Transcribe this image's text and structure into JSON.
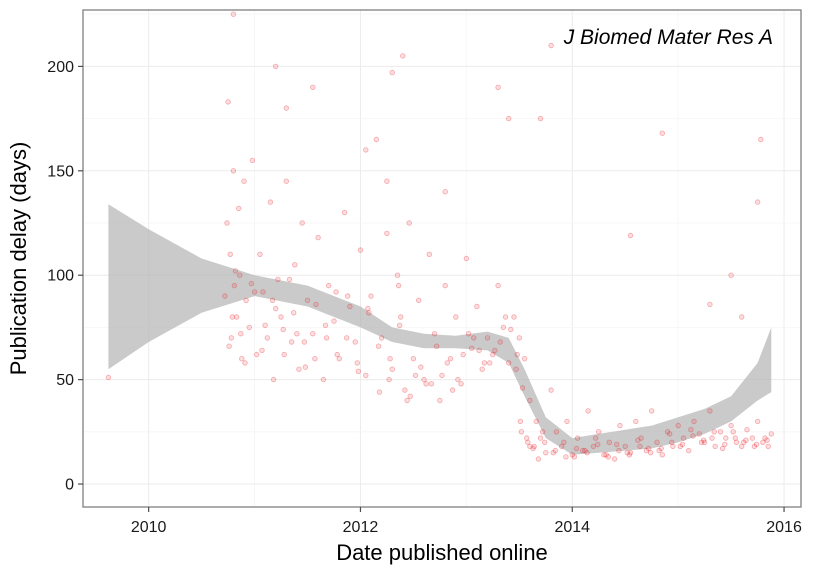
{
  "chart_data": {
    "type": "scatter",
    "title": "",
    "annotation": "J Biomed Mater Res A",
    "xlabel": "Date published online",
    "ylabel": "Publication delay (days)",
    "xlim": [
      2009.38,
      2016.16
    ],
    "ylim": [
      -11,
      227
    ],
    "x_ticks": [
      2010,
      2012,
      2014,
      2016
    ],
    "y_ticks": [
      0,
      50,
      100,
      150,
      200
    ],
    "grid": true,
    "legend": "none",
    "point_color": "#e8202a",
    "band_color": "#b3b3b3",
    "series": [
      {
        "kind": "points",
        "x": [
          2009.62,
          2010.72,
          2010.74,
          2010.75,
          2010.77,
          2010.78,
          2010.8,
          2010.81,
          2010.83,
          2010.85,
          2010.86,
          2010.88,
          2010.9,
          2010.92,
          2010.95,
          2010.98,
          2011.02,
          2011.05,
          2011.08,
          2011.12,
          2011.15,
          2011.18,
          2011.22,
          2011.25,
          2011.3,
          2011.35,
          2011.38,
          2011.42,
          2011.45,
          2011.5,
          2011.55,
          2011.6,
          2011.65,
          2011.7,
          2011.75,
          2011.8,
          2011.85,
          2011.9,
          2011.95,
          2012.0,
          2012.05,
          2012.1,
          2012.15,
          2012.2,
          2012.25,
          2012.3,
          2012.35,
          2012.38,
          2012.42,
          2012.46,
          2012.5,
          2012.55,
          2012.6,
          2012.65,
          2012.7,
          2012.75,
          2012.8,
          2012.85,
          2012.9,
          2012.95,
          2013.0,
          2013.05,
          2013.1,
          2013.15,
          2013.2,
          2013.25,
          2013.3,
          2013.35,
          2013.4,
          2013.45,
          2013.5,
          2013.52,
          2013.55,
          2013.58,
          2013.6,
          2013.63,
          2013.66,
          2013.7,
          2013.75,
          2013.8,
          2013.85,
          2013.9,
          2013.95,
          2014.0,
          2014.05,
          2014.1,
          2014.15,
          2014.2,
          2014.25,
          2014.3,
          2014.35,
          2014.4,
          2014.45,
          2014.5,
          2014.55,
          2014.6,
          2014.65,
          2014.7,
          2014.75,
          2014.8,
          2014.85,
          2014.9,
          2014.95,
          2015.0,
          2015.05,
          2015.1,
          2015.15,
          2015.2,
          2015.25,
          2015.3,
          2015.35,
          2015.4,
          2015.45,
          2015.5,
          2015.55,
          2015.6,
          2015.65,
          2015.7,
          2015.75,
          2015.8,
          2015.85,
          2015.88,
          2010.76,
          2010.82,
          2010.91,
          2011.0,
          2011.1,
          2011.2,
          2011.28,
          2011.33,
          2011.4,
          2011.48,
          2011.58,
          2011.68,
          2011.78,
          2011.88,
          2011.98,
          2012.08,
          2012.18,
          2012.28,
          2012.36,
          2012.44,
          2012.52,
          2012.62,
          2012.72,
          2012.82,
          2012.92,
          2013.02,
          2013.12,
          2013.22,
          2013.32,
          2013.42,
          2013.48,
          2013.53,
          2013.6,
          2013.68,
          2013.72,
          2013.82,
          2013.92,
          2014.02,
          2014.12,
          2014.22,
          2014.32,
          2014.42,
          2014.52,
          2014.62,
          2014.72,
          2014.82,
          2014.92,
          2015.02,
          2015.12,
          2015.22,
          2015.32,
          2015.42,
          2015.52,
          2015.62,
          2015.72,
          2015.82,
          2010.79,
          2010.87,
          2010.97,
          2011.07,
          2011.17,
          2011.27,
          2011.37,
          2011.47,
          2011.57,
          2011.67,
          2011.77,
          2011.87,
          2011.97,
          2012.07,
          2012.17,
          2012.27,
          2012.37,
          2012.47,
          2012.57,
          2012.67,
          2012.77,
          2012.87,
          2012.97,
          2013.07,
          2013.17,
          2013.27,
          2013.37,
          2013.47,
          2013.51,
          2013.57,
          2013.64,
          2013.74,
          2013.84,
          2013.94,
          2014.04,
          2014.14,
          2014.24,
          2014.34,
          2014.44,
          2014.54,
          2014.64,
          2014.74,
          2014.84,
          2014.94,
          2015.04,
          2015.14,
          2015.24,
          2015.34,
          2015.44,
          2015.54,
          2015.64,
          2015.74,
          2015.84,
          2012.4,
          2012.3,
          2013.3,
          2013.7,
          2013.8,
          2011.3,
          2011.55,
          2012.05,
          2012.25,
          2012.8,
          2013.4,
          2015.5,
          2015.6,
          2015.75,
          2015.78,
          2014.85,
          2014.55,
          2015.3,
          2010.8,
          2011.2
        ],
        "y": [
          51,
          90,
          125,
          183,
          110,
          70,
          150,
          95,
          80,
          132,
          100,
          60,
          145,
          88,
          75,
          155,
          62,
          110,
          92,
          70,
          135,
          50,
          98,
          80,
          145,
          68,
          105,
          55,
          125,
          88,
          72,
          118,
          50,
          95,
          78,
          60,
          130,
          85,
          68,
          112,
          52,
          90,
          165,
          70,
          120,
          55,
          100,
          80,
          45,
          125,
          60,
          88,
          50,
          110,
          72,
          40,
          95,
          60,
          80,
          48,
          108,
          65,
          85,
          55,
          70,
          62,
          95,
          75,
          58,
          80,
          70,
          25,
          60,
          20,
          40,
          17,
          30,
          22,
          15,
          45,
          25,
          18,
          30,
          14,
          22,
          16,
          35,
          18,
          25,
          14,
          20,
          12,
          28,
          18,
          15,
          30,
          22,
          16,
          35,
          20,
          14,
          25,
          18,
          28,
          22,
          16,
          30,
          24,
          20,
          35,
          18,
          25,
          22,
          28,
          20,
          18,
          26,
          22,
          30,
          20,
          18,
          24,
          66,
          102,
          58,
          92,
          76,
          84,
          62,
          98,
          72,
          56,
          86,
          70,
          62,
          90,
          54,
          82,
          44,
          60,
          95,
          40,
          52,
          48,
          66,
          58,
          50,
          72,
          64,
          58,
          68,
          74,
          62,
          46,
          18,
          12,
          25,
          15,
          20,
          13,
          16,
          22,
          14,
          19,
          15,
          21,
          17,
          16,
          24,
          18,
          26,
          20,
          22,
          17,
          25,
          20,
          18,
          22,
          80,
          72,
          96,
          64,
          88,
          74,
          82,
          68,
          60,
          76,
          92,
          70,
          58,
          84,
          66,
          50,
          76,
          42,
          56,
          48,
          52,
          45,
          62,
          70,
          58,
          64,
          80,
          55,
          30,
          22,
          18,
          20,
          16,
          13,
          17,
          15,
          19,
          13,
          16,
          14,
          18,
          15,
          17,
          20,
          19,
          23,
          21,
          25,
          19,
          22,
          21,
          19,
          21,
          205,
          197,
          190,
          175,
          210,
          180,
          190,
          160,
          145,
          140,
          175,
          100,
          80,
          135,
          165,
          168,
          119,
          86,
          225,
          200
        ],
        "alpha": 0.15,
        "radius": 2.3
      },
      {
        "kind": "band",
        "x": [
          2009.62,
          2010.0,
          2010.5,
          2011.0,
          2011.5,
          2012.0,
          2012.3,
          2012.6,
          2012.9,
          2013.2,
          2013.4,
          2013.55,
          2013.75,
          2014.0,
          2014.25,
          2014.5,
          2014.75,
          2015.0,
          2015.25,
          2015.5,
          2015.75,
          2015.88
        ],
        "lower": [
          55,
          68,
          82,
          90,
          85,
          75,
          68,
          65,
          65,
          64,
          58,
          42,
          22,
          14,
          15,
          16,
          17,
          20,
          24,
          30,
          40,
          44
        ],
        "upper": [
          134,
          122,
          108,
          100,
          95,
          85,
          75,
          72,
          71,
          73,
          70,
          55,
          32,
          22,
          24,
          26,
          28,
          32,
          36,
          42,
          58,
          75
        ]
      }
    ]
  }
}
